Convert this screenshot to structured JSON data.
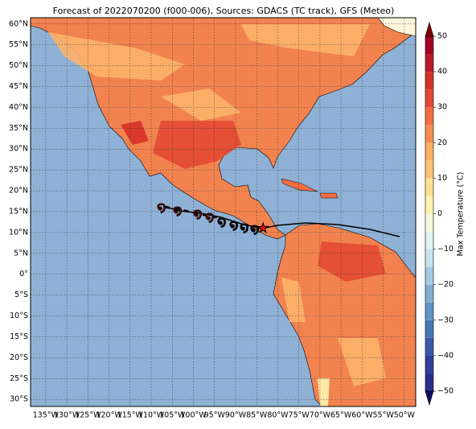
{
  "map": {
    "title": "Forecast of 2022070200 (f000-006), Sources: GDACS (TC track), GFS (Meteo)",
    "lonlim": [
      -138.6,
      -47.3
    ],
    "latlim": [
      -31.7,
      61.5
    ],
    "lat_ticks": [
      {
        "value": 60,
        "label": "60°N"
      },
      {
        "value": 55,
        "label": "55°N"
      },
      {
        "value": 50,
        "label": "50°N"
      },
      {
        "value": 45,
        "label": "45°N"
      },
      {
        "value": 40,
        "label": "40°N"
      },
      {
        "value": 35,
        "label": "35°N"
      },
      {
        "value": 30,
        "label": "30°N"
      },
      {
        "value": 25,
        "label": "25°N"
      },
      {
        "value": 20,
        "label": "20°N"
      },
      {
        "value": 15,
        "label": "15°N"
      },
      {
        "value": 10,
        "label": "10°N"
      },
      {
        "value": 5,
        "label": "5°N"
      },
      {
        "value": 0,
        "label": "0°"
      },
      {
        "value": -5,
        "label": "5°S"
      },
      {
        "value": -10,
        "label": "10°S"
      },
      {
        "value": -15,
        "label": "15°S"
      },
      {
        "value": -20,
        "label": "20°S"
      },
      {
        "value": -25,
        "label": "25°S"
      },
      {
        "value": -30,
        "label": "30°S"
      }
    ],
    "lon_ticks": [
      {
        "value": -135,
        "label": "135°W"
      },
      {
        "value": -130,
        "label": "130°W"
      },
      {
        "value": -125,
        "label": "125°W"
      },
      {
        "value": -120,
        "label": "120°W"
      },
      {
        "value": -115,
        "label": "115°W"
      },
      {
        "value": -110,
        "label": "110°W"
      },
      {
        "value": -105,
        "label": "105°W"
      },
      {
        "value": -100,
        "label": "100°W"
      },
      {
        "value": -95,
        "label": "95°W"
      },
      {
        "value": -90,
        "label": "90°W"
      },
      {
        "value": -85,
        "label": "85°W"
      },
      {
        "value": -80,
        "label": "80°W"
      },
      {
        "value": -75,
        "label": "75°W"
      },
      {
        "value": -70,
        "label": "70°W"
      },
      {
        "value": -65,
        "label": "65°W"
      },
      {
        "value": -60,
        "label": "60°W"
      },
      {
        "value": -55,
        "label": "55°W"
      },
      {
        "value": -50,
        "label": "50°W"
      }
    ],
    "colorbar": {
      "label": "Max Temperature (°C)",
      "lim": [
        -50,
        50
      ],
      "colors": [
        "#2b2f8c",
        "#323c9c",
        "#3a58a8",
        "#4575b4",
        "#6193c4",
        "#80aed3",
        "#a3cbe2",
        "#c6e3ef",
        "#e0f3f8",
        "#f3fadc",
        "#fff3b0",
        "#fee090",
        "#fdc274",
        "#fdae61",
        "#f88d52",
        "#f46d43",
        "#e34a33",
        "#d73027",
        "#b8182b",
        "#a50026"
      ],
      "ticks": [
        {
          "value": 50,
          "label": "50"
        },
        {
          "value": 40,
          "label": "40"
        },
        {
          "value": 30,
          "label": "30"
        },
        {
          "value": 20,
          "label": "20"
        },
        {
          "value": 10,
          "label": "10"
        },
        {
          "value": 0,
          "label": "0"
        },
        {
          "value": -10,
          "label": "−10"
        },
        {
          "value": -20,
          "label": "−20"
        },
        {
          "value": -30,
          "label": "−30"
        },
        {
          "value": -40,
          "label": "−40"
        },
        {
          "value": -50,
          "label": "−50"
        }
      ]
    }
  }
}
